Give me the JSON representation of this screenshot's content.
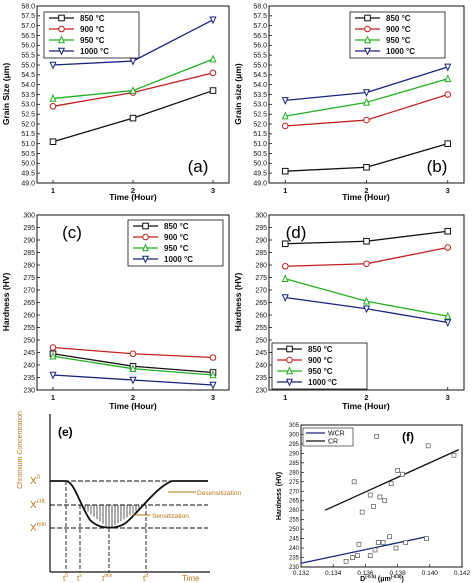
{
  "chart_data": [
    {
      "id": "a",
      "type": "line",
      "panel_label": "(a)",
      "xlabel": "Time (Hour)",
      "ylabel": "Grain Size (μm)",
      "x": [
        1,
        2,
        3
      ],
      "xlim": [
        0.8,
        3.2
      ],
      "ylim": [
        49.0,
        58.0
      ],
      "yticks": [
        "49.0",
        "49.5",
        "50.0",
        "50.5",
        "51.0",
        "51.5",
        "52.0",
        "52.5",
        "53.0",
        "53.5",
        "54.0",
        "54.5",
        "55.0",
        "55.5",
        "56.0",
        "56.5",
        "57.0",
        "57.5",
        "58.0"
      ],
      "legend_position": "top-left",
      "series": [
        {
          "name": "850 °C",
          "color": "#111111",
          "marker": "square",
          "values": [
            51.1,
            52.3,
            53.7
          ]
        },
        {
          "name": "900 °C",
          "color": "#c02020",
          "marker": "circle",
          "values": [
            52.9,
            53.6,
            54.6
          ]
        },
        {
          "name": "950 °C",
          "color": "#22b022",
          "marker": "triangle",
          "values": [
            53.3,
            53.7,
            55.3
          ]
        },
        {
          "name": "1000 °C",
          "color": "#1a237e",
          "marker": "triangle-down",
          "values": [
            55.0,
            55.2,
            57.3
          ]
        }
      ]
    },
    {
      "id": "b",
      "type": "line",
      "panel_label": "(b)",
      "xlabel": "Time (Hour)",
      "ylabel": "Grain size (μm)",
      "x": [
        1,
        2,
        3
      ],
      "xlim": [
        0.8,
        3.2
      ],
      "ylim": [
        49.0,
        58.0
      ],
      "yticks": [
        "49.0",
        "49.5",
        "50.0",
        "50.5",
        "51.0",
        "51.5",
        "52.0",
        "52.5",
        "53.0",
        "53.5",
        "54.0",
        "54.5",
        "55.0",
        "55.5",
        "56.0",
        "56.5",
        "57.0",
        "57.5",
        "58.0"
      ],
      "legend_position": "top-right",
      "series": [
        {
          "name": "850 °C",
          "color": "#111111",
          "marker": "square",
          "values": [
            49.6,
            49.8,
            51.0
          ]
        },
        {
          "name": "900 °C",
          "color": "#c02020",
          "marker": "circle",
          "values": [
            51.9,
            52.2,
            53.5
          ]
        },
        {
          "name": "950 °C",
          "color": "#22b022",
          "marker": "triangle",
          "values": [
            52.4,
            53.1,
            54.3
          ]
        },
        {
          "name": "1000 °C",
          "color": "#1a237e",
          "marker": "triangle-down",
          "values": [
            53.2,
            53.6,
            54.9
          ]
        }
      ]
    },
    {
      "id": "c",
      "type": "line",
      "panel_label": "(c)",
      "xlabel": "Time (Hour)",
      "ylabel": "Hardness (HV)",
      "x": [
        1,
        2,
        3
      ],
      "xlim": [
        0.8,
        3.2
      ],
      "ylim": [
        230,
        300
      ],
      "yticks": [
        "230",
        "235",
        "240",
        "245",
        "250",
        "255",
        "260",
        "265",
        "270",
        "275",
        "280",
        "285",
        "290",
        "295",
        "300"
      ],
      "legend_position": "top-right",
      "series": [
        {
          "name": "850 °C",
          "color": "#111111",
          "marker": "square",
          "values": [
            244.5,
            239.5,
            237.0
          ]
        },
        {
          "name": "900 °C",
          "color": "#c02020",
          "marker": "circle",
          "values": [
            247.0,
            244.5,
            243.0
          ]
        },
        {
          "name": "950 °C",
          "color": "#22b022",
          "marker": "triangle",
          "values": [
            243.5,
            238.5,
            236.0
          ]
        },
        {
          "name": "1000 °C",
          "color": "#1a237e",
          "marker": "triangle-down",
          "values": [
            236.0,
            234.0,
            232.0
          ]
        }
      ]
    },
    {
      "id": "d",
      "type": "line",
      "panel_label": "(d)",
      "xlabel": "Time (Hour)",
      "ylabel": "Hardness (HV)",
      "x": [
        1,
        2,
        3
      ],
      "xlim": [
        0.8,
        3.2
      ],
      "ylim": [
        230,
        300
      ],
      "yticks": [
        "230",
        "235",
        "240",
        "245",
        "250",
        "255",
        "260",
        "265",
        "270",
        "275",
        "280",
        "285",
        "290",
        "295",
        "300"
      ],
      "legend_position": "bottom-left",
      "series": [
        {
          "name": "850 °C",
          "color": "#111111",
          "marker": "square",
          "values": [
            288.5,
            289.5,
            293.5
          ]
        },
        {
          "name": "900 °C",
          "color": "#c02020",
          "marker": "circle",
          "values": [
            279.5,
            280.5,
            287.0
          ]
        },
        {
          "name": "950 °C",
          "color": "#22b022",
          "marker": "triangle",
          "values": [
            274.5,
            265.5,
            259.5
          ]
        },
        {
          "name": "1000 °C",
          "color": "#1a237e",
          "marker": "triangle-down",
          "values": [
            267.0,
            262.5,
            257.0
          ]
        }
      ]
    },
    {
      "id": "f",
      "type": "scatter",
      "panel_label": "(f)",
      "xlabel": "D",
      "xlabel_sup": "(-0.5)",
      "xlabel_unit": "(μm",
      "xlabel_unit_sup": "(-0.5)",
      "xlabel_unit_close": ")",
      "ylabel": "Hardness (HV)",
      "xlim": [
        0.132,
        0.142
      ],
      "ylim": [
        230,
        305
      ],
      "xticks": [
        "0.132",
        "0.134",
        "0.136",
        "0.138",
        "0.140",
        "0.142"
      ],
      "yticks": [
        "230",
        "235",
        "240",
        "245",
        "250",
        "255",
        "260",
        "265",
        "270",
        "275",
        "280",
        "285",
        "290",
        "295",
        "300",
        "305"
      ],
      "legend_position": "top-left",
      "series": [
        {
          "name": "WCR",
          "color": "#1a237e",
          "points": [
            [
              0.1348,
              233
            ],
            [
              0.1352,
              235
            ],
            [
              0.1355,
              236
            ],
            [
              0.1356,
              242
            ],
            [
              0.1363,
              236
            ],
            [
              0.1366,
              239
            ],
            [
              0.1368,
              243
            ],
            [
              0.1371,
              243
            ],
            [
              0.1375,
              246
            ],
            [
              0.1379,
              240
            ],
            [
              0.1385,
              243
            ],
            [
              0.1398,
              245
            ]
          ],
          "fit": [
            [
              0.132,
              232
            ],
            [
              0.1398,
              246
            ]
          ]
        },
        {
          "name": "CR",
          "color": "#111111",
          "points": [
            [
              0.1353,
              275
            ],
            [
              0.1358,
              259
            ],
            [
              0.1363,
              268
            ],
            [
              0.1365,
              262
            ],
            [
              0.1367,
              299
            ],
            [
              0.1369,
              267
            ],
            [
              0.1372,
              265
            ],
            [
              0.1376,
              274
            ],
            [
              0.138,
              281
            ],
            [
              0.1383,
              279
            ],
            [
              0.1399,
              294
            ],
            [
              0.1415,
              289
            ]
          ],
          "fit": [
            [
              0.1335,
              260
            ],
            [
              0.1418,
              292
            ]
          ]
        }
      ]
    }
  ],
  "diagram_e": {
    "panel_label": "(e)",
    "ylabel": "Chromium Concentration",
    "levels": [
      {
        "base": "X",
        "sup": "0"
      },
      {
        "base": "X",
        "sup": "crit"
      },
      {
        "base": "X",
        "sup": "min"
      }
    ],
    "x_marks": [
      {
        "base": "t",
        "sup": "0"
      },
      {
        "base": "t",
        "sup": "s"
      },
      {
        "base": "t",
        "sup": "min"
      },
      {
        "base": "t",
        "sup": "d"
      }
    ],
    "xlabel": "Time",
    "annotations": [
      "Desensitization",
      "Sensitization"
    ]
  }
}
